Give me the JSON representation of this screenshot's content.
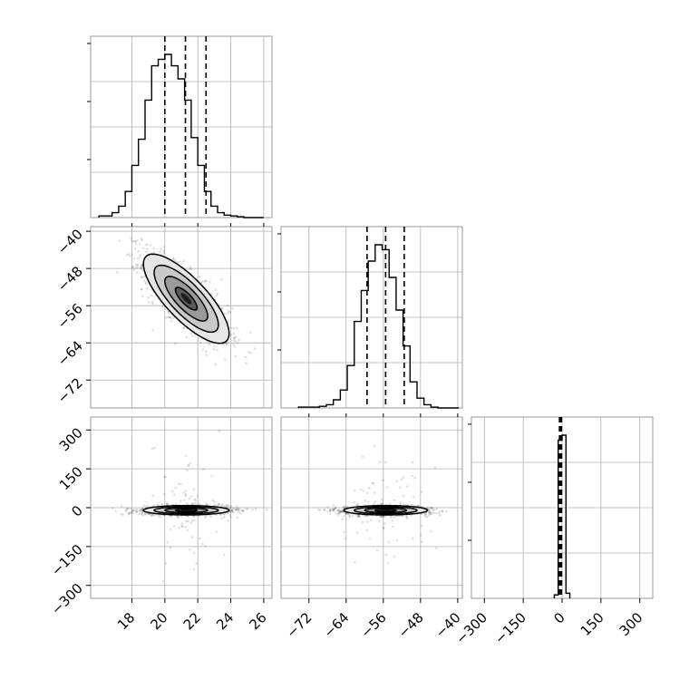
{
  "chart_data": {
    "type": "corner",
    "parameters": [
      {
        "range": [
          15.5,
          26.5
        ],
        "ticks": [
          18,
          20,
          22,
          24,
          26
        ],
        "tick_labels": [
          "18",
          "20",
          "22",
          "24",
          "26"
        ],
        "hist": {
          "bins": [
            16.2,
            16.6,
            17.0,
            17.4,
            17.8,
            18.2,
            18.6,
            19.0,
            19.4,
            19.8,
            20.2,
            20.6,
            21.0,
            21.4,
            21.8,
            22.2,
            22.6,
            23.0,
            23.4,
            23.8,
            24.2,
            24.6,
            25.0,
            25.4,
            25.8
          ],
          "counts": [
            0.01,
            0.01,
            0.03,
            0.07,
            0.16,
            0.32,
            0.48,
            0.72,
            0.93,
            0.97,
            1.0,
            0.93,
            0.85,
            0.72,
            0.49,
            0.32,
            0.16,
            0.07,
            0.03,
            0.015,
            0.01,
            0.005,
            0.0,
            0.0,
            0.0
          ]
        },
        "quantiles": [
          20.0,
          21.25,
          22.5
        ]
      },
      {
        "range": [
          -78,
          -39
        ],
        "ticks": [
          -72,
          -64,
          -56,
          -48,
          -40
        ],
        "tick_labels": [
          "−72",
          "−64",
          "−56",
          "−48",
          "−40"
        ],
        "hist": {
          "bins": [
            -73.5,
            -72.0,
            -70.5,
            -69.0,
            -67.5,
            -66.0,
            -64.5,
            -63.0,
            -61.5,
            -60.0,
            -58.5,
            -57.0,
            -55.5,
            -54.0,
            -52.5,
            -51.0,
            -49.5,
            -48.0,
            -46.5,
            -45.0,
            -43.5,
            -42.0,
            -40.5
          ],
          "counts": [
            0.005,
            0.005,
            0.005,
            0.01,
            0.02,
            0.05,
            0.11,
            0.26,
            0.53,
            0.72,
            0.9,
            1.0,
            0.97,
            0.8,
            0.6,
            0.38,
            0.16,
            0.06,
            0.02,
            0.005,
            0.0,
            0.0,
            0.0
          ]
        },
        "quantiles": [
          -59.5,
          -55.5,
          -51.5
        ]
      },
      {
        "range": [
          -350,
          350
        ],
        "ticks": [
          -300,
          -150,
          0,
          150,
          300
        ],
        "tick_labels": [
          "−300",
          "−150",
          "0",
          "150",
          "300"
        ],
        "hist": {
          "bins": [
            -22.5,
            -7.5,
            7.5,
            22.5
          ],
          "counts": [
            0.02,
            0.93,
            0.96,
            0.03
          ]
        },
        "quantiles": [
          -10,
          -6,
          -2
        ]
      }
    ],
    "pairs": {
      "1_0": {
        "mean": [
          21.3,
          -54.5
        ],
        "sd": [
          1.3,
          4.8
        ],
        "rho": -0.78
      },
      "2_0": {
        "mean": [
          21.3,
          -10
        ],
        "sd": [
          1.3,
          9
        ],
        "rho": 0.0
      },
      "2_1": {
        "mean": [
          -55.5,
          -10
        ],
        "sd": [
          4.5,
          9
        ],
        "rho": 0.0
      }
    },
    "contour_levels_sigma": [
      0.5,
      1.0,
      1.5,
      2.0
    ],
    "grid": true
  }
}
